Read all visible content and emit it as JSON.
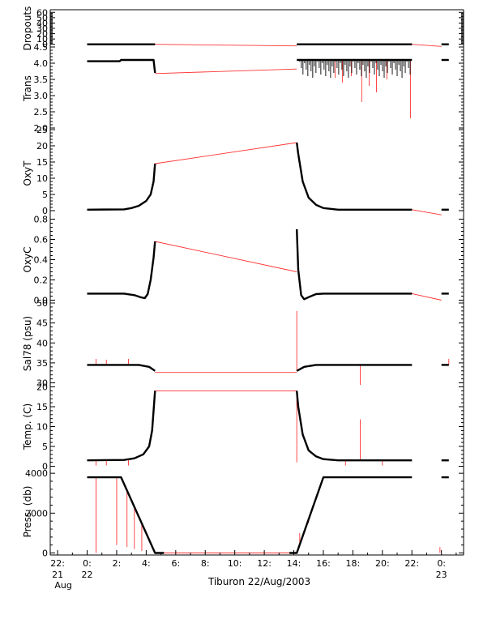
{
  "chart_data": {
    "type": "line",
    "xlabel": "Tiburon 22/Aug/2003",
    "x_range_hours": [
      -2.5,
      25.5
    ],
    "x_ticks": [
      {
        "hour": -2,
        "label": "22:",
        "sub": [
          "21",
          "Aug"
        ]
      },
      {
        "hour": 0,
        "label": "0:",
        "sub": [
          "22"
        ]
      },
      {
        "hour": 2,
        "label": "2:"
      },
      {
        "hour": 4,
        "label": "4:"
      },
      {
        "hour": 6,
        "label": "6:"
      },
      {
        "hour": 8,
        "label": "8:"
      },
      {
        "hour": 10,
        "label": "10:"
      },
      {
        "hour": 12,
        "label": "12:"
      },
      {
        "hour": 14,
        "label": "14:"
      },
      {
        "hour": 16,
        "label": "16:"
      },
      {
        "hour": 18,
        "label": "18:"
      },
      {
        "hour": 20,
        "label": "20:"
      },
      {
        "hour": 22,
        "label": "22:"
      },
      {
        "hour": 24,
        "label": "0:",
        "sub": [
          "23"
        ]
      }
    ],
    "panels": [
      {
        "ylabel": "Dropouts",
        "ylim": [
          -5,
          65
        ],
        "yticks": [
          0,
          10,
          20,
          30,
          40,
          50,
          60
        ],
        "series": [
          {
            "x": [
              0,
              4.6
            ],
            "y": [
              0,
              0
            ]
          },
          {
            "x": [
              14.2,
              22.0
            ],
            "y": [
              0,
              0
            ]
          },
          {
            "x": [
              24.0,
              24.5
            ],
            "y": [
              0,
              0
            ]
          }
        ],
        "gaps": [
          {
            "x": [
              4.6,
              14.2
            ],
            "y": [
              0,
              -3
            ]
          },
          {
            "x": [
              22.0,
              24.0
            ],
            "y": [
              0,
              -4
            ]
          }
        ]
      },
      {
        "ylabel": "Trans",
        "ylim": [
          1.95,
          4.5
        ],
        "yticks": [
          2.0,
          2.5,
          3.0,
          3.5,
          4.0,
          4.5
        ],
        "series": [
          {
            "x": [
              0,
              2.2,
              2.3,
              4.5,
              4.6
            ],
            "y": [
              4.06,
              4.06,
              4.1,
              4.1,
              3.7
            ]
          },
          {
            "x": [
              14.2,
              22.0
            ],
            "y": [
              4.1,
              4.1
            ]
          },
          {
            "x": [
              24.0,
              24.5
            ],
            "y": [
              4.1,
              4.1
            ]
          }
        ],
        "gaps": [
          {
            "x": [
              4.6,
              14.2
            ],
            "y": [
              3.68,
              3.82
            ]
          }
        ],
        "spikes": [
          {
            "x": 16.8,
            "y": 3.55
          },
          {
            "x": 17.3,
            "y": 3.4
          },
          {
            "x": 17.9,
            "y": 3.6
          },
          {
            "x": 18.6,
            "y": 2.8
          },
          {
            "x": 19.1,
            "y": 3.3
          },
          {
            "x": 19.6,
            "y": 3.1
          },
          {
            "x": 20.3,
            "y": 3.5
          },
          {
            "x": 21.9,
            "y": 2.3
          }
        ]
      },
      {
        "ylabel": "OxyT",
        "ylim": [
          -2,
          25
        ],
        "yticks": [
          0,
          5,
          10,
          15,
          20,
          25
        ],
        "series": [
          {
            "x": [
              0,
              2.5,
              3.0,
              3.5,
              4.0,
              4.3,
              4.5,
              4.6
            ],
            "y": [
              0.3,
              0.4,
              0.8,
              1.5,
              3.0,
              5.0,
              9.0,
              14.5
            ]
          },
          {
            "x": [
              14.2,
              14.3,
              14.6,
              15.0,
              15.5,
              16.0,
              17.0,
              22.0
            ],
            "y": [
              21.0,
              17.5,
              9.0,
              4.0,
              1.8,
              0.8,
              0.3,
              0.3
            ]
          },
          {
            "x": [
              24.0,
              24.5
            ],
            "y": [
              0.3,
              0.3
            ]
          }
        ],
        "gaps": [
          {
            "x": [
              4.6,
              14.2
            ],
            "y": [
              14.5,
              21.0
            ]
          },
          {
            "x": [
              22.0,
              24.0
            ],
            "y": [
              0.3,
              -1.3
            ]
          }
        ]
      },
      {
        "ylabel": "OxyC",
        "ylim": [
          -0.02,
          0.82
        ],
        "yticks": [
          0.0,
          0.2,
          0.4,
          0.6,
          0.8
        ],
        "series": [
          {
            "x": [
              0,
              2.5,
              3.2,
              3.6,
              3.9,
              4.1,
              4.3,
              4.5,
              4.6
            ],
            "y": [
              0.065,
              0.065,
              0.05,
              0.03,
              0.02,
              0.06,
              0.2,
              0.42,
              0.58
            ]
          },
          {
            "x": [
              14.2,
              14.3,
              14.5,
              14.7,
              15.0,
              15.5,
              16.0,
              17.0,
              22.0
            ],
            "y": [
              0.7,
              0.3,
              0.05,
              0.01,
              0.03,
              0.06,
              0.065,
              0.065,
              0.065
            ]
          },
          {
            "x": [
              24.0,
              24.5
            ],
            "y": [
              0.065,
              0.065
            ]
          }
        ],
        "gaps": [
          {
            "x": [
              4.6,
              14.2
            ],
            "y": [
              0.58,
              0.28
            ]
          },
          {
            "x": [
              22.0,
              24.0
            ],
            "y": [
              0.065,
              0.0
            ]
          }
        ]
      },
      {
        "ylabel": "Sal78 (psu)",
        "ylim": [
          29.5,
          50.2
        ],
        "yticks": [
          30,
          35,
          40,
          45,
          50
        ],
        "series": [
          {
            "x": [
              0,
              3.5,
              4.2,
              4.6
            ],
            "y": [
              34.5,
              34.5,
              34.0,
              33.0
            ]
          },
          {
            "x": [
              14.2,
              14.7,
              15.5,
              22.0
            ],
            "y": [
              33.0,
              34.0,
              34.5,
              34.5
            ]
          },
          {
            "x": [
              24.0,
              24.5
            ],
            "y": [
              34.5,
              34.5
            ]
          }
        ],
        "gaps": [
          {
            "x": [
              4.6,
              14.2
            ],
            "y": [
              32.6,
              32.6
            ]
          }
        ],
        "spikes": [
          {
            "x": 0.6,
            "y": 36.0
          },
          {
            "x": 1.3,
            "y": 35.8
          },
          {
            "x": 2.8,
            "y": 36.0
          },
          {
            "x": 14.2,
            "y": 48.0
          },
          {
            "x": 18.5,
            "y": 25.0
          },
          {
            "x": 24.5,
            "y": 36.0
          }
        ]
      },
      {
        "ylabel": "Temp. (C)",
        "ylim": [
          -0.5,
          20.5
        ],
        "yticks": [
          0,
          5,
          10,
          15,
          20
        ],
        "series": [
          {
            "x": [
              0,
              2.5,
              3.2,
              3.8,
              4.2,
              4.4,
              4.5,
              4.6
            ],
            "y": [
              1.5,
              1.6,
              2.0,
              3.0,
              5.0,
              9.0,
              14.0,
              19.0
            ]
          },
          {
            "x": [
              14.2,
              14.3,
              14.6,
              15.0,
              15.5,
              16.0,
              17.0,
              22.0
            ],
            "y": [
              19.0,
              15.0,
              8.0,
              4.0,
              2.5,
              1.8,
              1.5,
              1.5
            ]
          },
          {
            "x": [
              24.0,
              24.5
            ],
            "y": [
              1.5,
              1.5
            ]
          }
        ],
        "gaps": [
          {
            "x": [
              4.6,
              14.2
            ],
            "y": [
              19.0,
              19.0
            ]
          }
        ],
        "spikes": [
          {
            "x": 14.2,
            "y": 1.0
          },
          {
            "x": 18.5,
            "y": 11.8
          },
          {
            "x": 0.6,
            "y": 0.2
          },
          {
            "x": 1.3,
            "y": 0.2
          },
          {
            "x": 2.8,
            "y": 0.2
          },
          {
            "x": 17.5,
            "y": 0.2
          },
          {
            "x": 20.0,
            "y": 0.2
          }
        ]
      },
      {
        "ylabel": "Press. (db)",
        "ylim": [
          -100,
          4250
        ],
        "yticks": [
          0,
          2000,
          4000
        ],
        "series": [
          {
            "x": [
              0,
              2.3,
              4.6,
              5.2
            ],
            "y": [
              3800,
              3800,
              0,
              0
            ]
          },
          {
            "x": [
              13.7,
              14.2,
              16.0,
              22.0
            ],
            "y": [
              0,
              0,
              3800,
              3800
            ]
          },
          {
            "x": [
              24.0,
              24.5
            ],
            "y": [
              3800,
              3800
            ]
          }
        ],
        "gaps": [
          {
            "x": [
              5.2,
              13.7
            ],
            "y": [
              0,
              0
            ]
          }
        ],
        "spikes": [
          {
            "x": 0.6,
            "y": 0
          },
          {
            "x": 2.0,
            "y": 400
          },
          {
            "x": 2.7,
            "y": 300
          },
          {
            "x": 3.2,
            "y": 200
          },
          {
            "x": 3.7,
            "y": 100
          },
          {
            "x": 14.4,
            "y": 1000
          },
          {
            "x": 15.0,
            "y": 1500
          },
          {
            "x": 23.9,
            "y": 300
          }
        ]
      }
    ]
  }
}
